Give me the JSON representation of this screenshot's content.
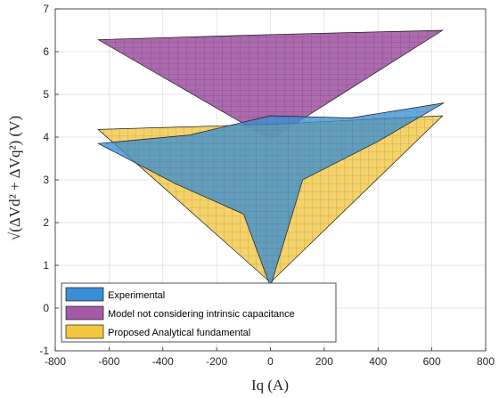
{
  "chart_data": {
    "type": "surface",
    "xlabel": "Iq (A)",
    "ylabel": "√(ΔVd² + ΔVq²) (V)",
    "xlim": [
      -800,
      800
    ],
    "ylim": [
      -1,
      7
    ],
    "xticks": [
      "-800",
      "-600",
      "-400",
      "-200",
      "0",
      "200",
      "400",
      "600",
      "800"
    ],
    "yticks": [
      "-1",
      "0",
      "1",
      "2",
      "3",
      "4",
      "5",
      "6",
      "7"
    ],
    "grid": true,
    "legend_position": "bottom-left",
    "series": [
      {
        "name": "Experimental",
        "color": "#3b8fd4",
        "outline": [
          [
            -640,
            3.85
          ],
          [
            -300,
            4.05
          ],
          [
            0,
            4.5
          ],
          [
            300,
            4.45
          ],
          [
            645,
            4.8
          ],
          [
            400,
            3.9
          ],
          [
            120,
            3.0
          ],
          [
            0,
            0.5
          ],
          [
            -100,
            2.2
          ],
          [
            -350,
            2.9
          ],
          [
            -640,
            3.85
          ]
        ]
      },
      {
        "name": "Model not considering intrinsic capacitance",
        "color": "#a45aa6",
        "outline": [
          [
            -640,
            6.28
          ],
          [
            0,
            6.4
          ],
          [
            640,
            6.5
          ],
          [
            0,
            3.95
          ],
          [
            -640,
            6.28
          ]
        ]
      },
      {
        "name": "Proposed Analytical fundamental",
        "color": "#f2c640",
        "outline": [
          [
            -640,
            4.18
          ],
          [
            0,
            4.3
          ],
          [
            640,
            4.5
          ],
          [
            0,
            0.6
          ],
          [
            -640,
            4.18
          ]
        ]
      }
    ]
  }
}
